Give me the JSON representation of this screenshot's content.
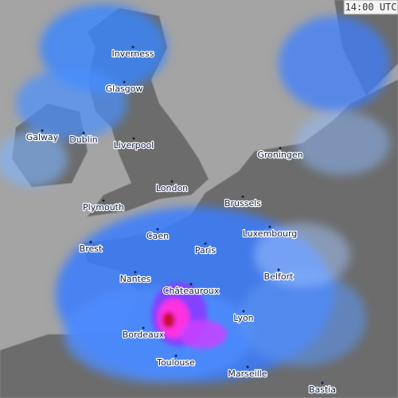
{
  "time_label": "14:00 UTC",
  "cities": [
    "Inverness",
    "Glasgow",
    "Galway",
    "Dublin",
    "Liverpool",
    "London",
    "Plymouth",
    "Groningen",
    "Brussels",
    "Luxembourg",
    "Caen",
    "Brest",
    "Paris",
    "Nantes",
    "Belfort",
    "Châteauroux",
    "Lyon",
    "Bordeaux",
    "Toulouse",
    "Marseille",
    "Bastia"
  ]
}
